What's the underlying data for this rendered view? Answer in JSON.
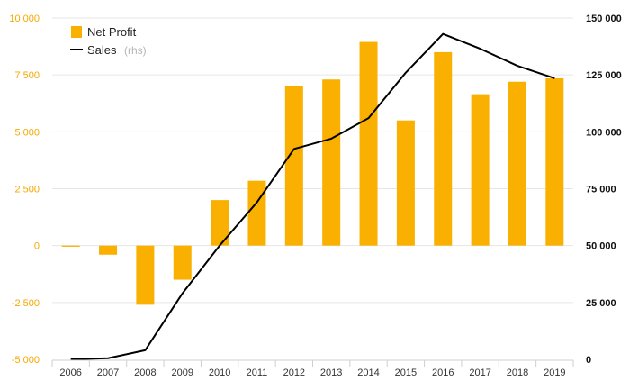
{
  "chart_data": {
    "type": "bar",
    "categories": [
      "2006",
      "2007",
      "2008",
      "2009",
      "2010",
      "2011",
      "2012",
      "2013",
      "2014",
      "2015",
      "2016",
      "2017",
      "2018",
      "2019"
    ],
    "series": [
      {
        "name": "Net Profit",
        "type": "bar",
        "axis": "left",
        "color": "#f9b000",
        "values": [
          -50,
          -400,
          -2600,
          -1500,
          2000,
          2850,
          7000,
          7300,
          8950,
          5500,
          8500,
          6650,
          7200,
          7350
        ]
      },
      {
        "name": "Sales",
        "type": "line",
        "axis": "right",
        "color": "#000000",
        "values": [
          0,
          500,
          4000,
          29000,
          50000,
          69000,
          92500,
          97000,
          106000,
          126000,
          143000,
          136500,
          129000,
          123500
        ]
      }
    ],
    "legend": {
      "position": "top-left",
      "items": [
        "Net Profit",
        "Sales"
      ],
      "sales_suffix": "(rhs)"
    },
    "left_axis": {
      "ylim": [
        -5000,
        10000
      ],
      "ticks": [
        -5000,
        -2500,
        0,
        2500,
        5000,
        7500,
        10000
      ],
      "tick_labels": [
        "-5 000",
        "-2 500",
        "0",
        "2 500",
        "5 000",
        "7 500",
        "10 000"
      ],
      "color": "#f5a800"
    },
    "right_axis": {
      "ylim": [
        0,
        150000
      ],
      "ticks": [
        0,
        25000,
        50000,
        75000,
        100000,
        125000,
        150000
      ],
      "tick_labels": [
        "0",
        "25 000",
        "50 000",
        "75 000",
        "100 000",
        "125 000",
        "150 000"
      ],
      "color": "#111111"
    },
    "grid": true,
    "title": "",
    "xlabel": "",
    "ylabel": ""
  }
}
